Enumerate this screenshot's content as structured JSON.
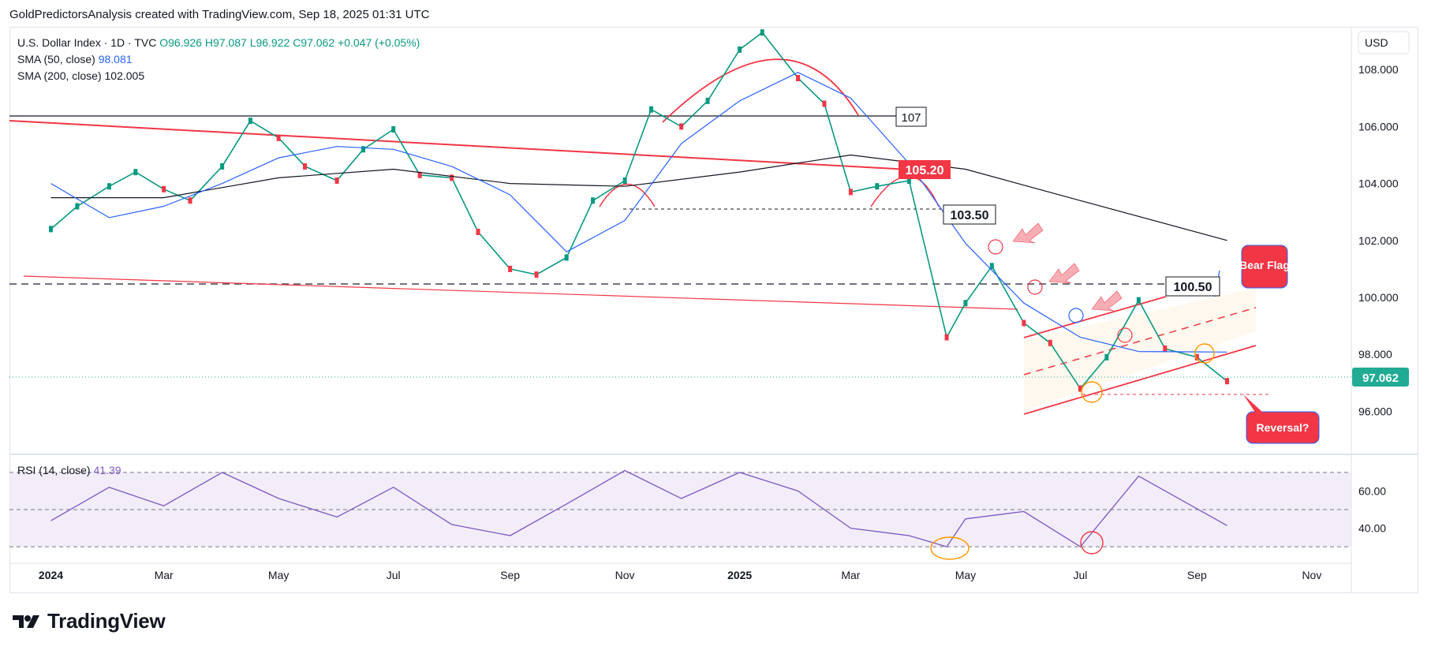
{
  "header": {
    "caption": "GoldPredictorsAnalysis created with TradingView.com, Sep 18, 2025 01:31 UTC"
  },
  "footer": {
    "brand": "TradingView"
  },
  "legend": {
    "symbol": "U.S. Dollar Index · 1D · TVC",
    "open": "O96.926",
    "high": "H97.087",
    "low": "L96.922",
    "close": "C97.062",
    "change": "+0.047 (+0.05%)",
    "sma50_label": "SMA (50, close)",
    "sma50_value": "98.081",
    "sma200_label": "SMA (200, close)",
    "sma200_value": "102.005"
  },
  "rsi_label": {
    "name": "RSI (14, close)",
    "value": "41.39"
  },
  "chart_data": {
    "type": "line",
    "currency": "USD",
    "x_tick_labels": [
      "2024",
      "Mar",
      "May",
      "Jul",
      "Sep",
      "Nov",
      "2025",
      "Mar",
      "May",
      "Jul",
      "Sep",
      "Nov"
    ],
    "y_tick_labels": [
      "108.000",
      "106.000",
      "104.000",
      "102.000",
      "100.000",
      "98.000",
      "96.000"
    ],
    "ylim": [
      94.6,
      109.5
    ],
    "rsi_tick_labels": [
      "60.00",
      "40.00"
    ],
    "rsi_ylim": [
      22,
      78
    ],
    "last_price": "97.062",
    "level_labels": [
      "107",
      "105.20",
      "103.50",
      "100.50"
    ],
    "annotations": [
      "Bear Flag",
      "Reversal?"
    ],
    "colors": {
      "price_bg": "#089981",
      "sma50": "#2962ff",
      "sma200": "#131722",
      "trend": "#f23645",
      "rsi": "#7e57c2",
      "last_price": "#22ab94"
    },
    "series": [
      {
        "name": "U.S. Dollar Index",
        "x": [
          "2024-01-01",
          "2024-01-15",
          "2024-02-01",
          "2024-02-15",
          "2024-03-01",
          "2024-03-15",
          "2024-04-01",
          "2024-04-16",
          "2024-05-01",
          "2024-05-15",
          "2024-06-01",
          "2024-06-15",
          "2024-07-01",
          "2024-07-15",
          "2024-08-01",
          "2024-08-15",
          "2024-09-01",
          "2024-09-15",
          "2024-10-01",
          "2024-10-15",
          "2024-11-01",
          "2024-11-15",
          "2024-12-01",
          "2024-12-15",
          "2025-01-01",
          "2025-01-13",
          "2025-02-01",
          "2025-02-15",
          "2025-03-01",
          "2025-03-15",
          "2025-04-01",
          "2025-04-21",
          "2025-05-01",
          "2025-05-15",
          "2025-06-01",
          "2025-06-15",
          "2025-07-01",
          "2025-07-15",
          "2025-08-01",
          "2025-08-15",
          "2025-09-01",
          "2025-09-17"
        ],
        "values": [
          102.4,
          103.2,
          103.9,
          104.4,
          103.8,
          103.4,
          104.6,
          106.2,
          105.6,
          104.6,
          104.1,
          105.2,
          105.9,
          104.3,
          104.2,
          102.3,
          101.0,
          100.8,
          101.4,
          103.4,
          104.1,
          106.6,
          106.0,
          106.9,
          108.7,
          109.3,
          107.7,
          106.8,
          103.7,
          103.9,
          104.1,
          98.6,
          99.8,
          101.1,
          99.1,
          98.4,
          96.8,
          97.9,
          99.9,
          98.2,
          97.9,
          97.06
        ]
      },
      {
        "name": "SMA (50, close)",
        "x": [
          "2024-01-01",
          "2024-02-01",
          "2024-03-01",
          "2024-04-01",
          "2024-05-01",
          "2024-06-01",
          "2024-07-01",
          "2024-08-01",
          "2024-09-01",
          "2024-10-01",
          "2024-11-01",
          "2024-12-01",
          "2025-01-01",
          "2025-02-01",
          "2025-03-01",
          "2025-04-01",
          "2025-05-01",
          "2025-06-01",
          "2025-07-01",
          "2025-08-01",
          "2025-09-17"
        ],
        "values": [
          104.0,
          102.8,
          103.2,
          104.0,
          104.9,
          105.3,
          105.2,
          104.6,
          103.6,
          101.6,
          102.7,
          105.4,
          106.9,
          107.9,
          107.0,
          104.7,
          101.9,
          99.8,
          98.6,
          98.1,
          98.08
        ]
      },
      {
        "name": "SMA (200, close)",
        "x": [
          "2024-01-01",
          "2024-03-01",
          "2024-05-01",
          "2024-07-01",
          "2024-09-01",
          "2024-11-01",
          "2025-01-01",
          "2025-03-01",
          "2025-05-01",
          "2025-07-01",
          "2025-09-17"
        ],
        "values": [
          103.5,
          103.5,
          104.2,
          104.5,
          104.0,
          103.9,
          104.4,
          105.0,
          104.5,
          103.4,
          102.0
        ]
      }
    ],
    "rsi_series": {
      "name": "RSI (14, close)",
      "x": [
        "2024-01-01",
        "2024-02-01",
        "2024-03-01",
        "2024-04-01",
        "2024-05-01",
        "2024-06-01",
        "2024-07-01",
        "2024-08-01",
        "2024-09-01",
        "2024-10-01",
        "2024-11-01",
        "2024-12-01",
        "2025-01-01",
        "2025-02-01",
        "2025-03-01",
        "2025-04-01",
        "2025-04-21",
        "2025-05-01",
        "2025-06-01",
        "2025-07-01",
        "2025-08-01",
        "2025-09-17"
      ],
      "values": [
        44,
        62,
        52,
        70,
        56,
        46,
        62,
        42,
        36,
        53,
        71,
        56,
        70,
        60,
        40,
        36,
        30,
        45,
        49,
        30,
        68,
        41.39
      ]
    }
  }
}
